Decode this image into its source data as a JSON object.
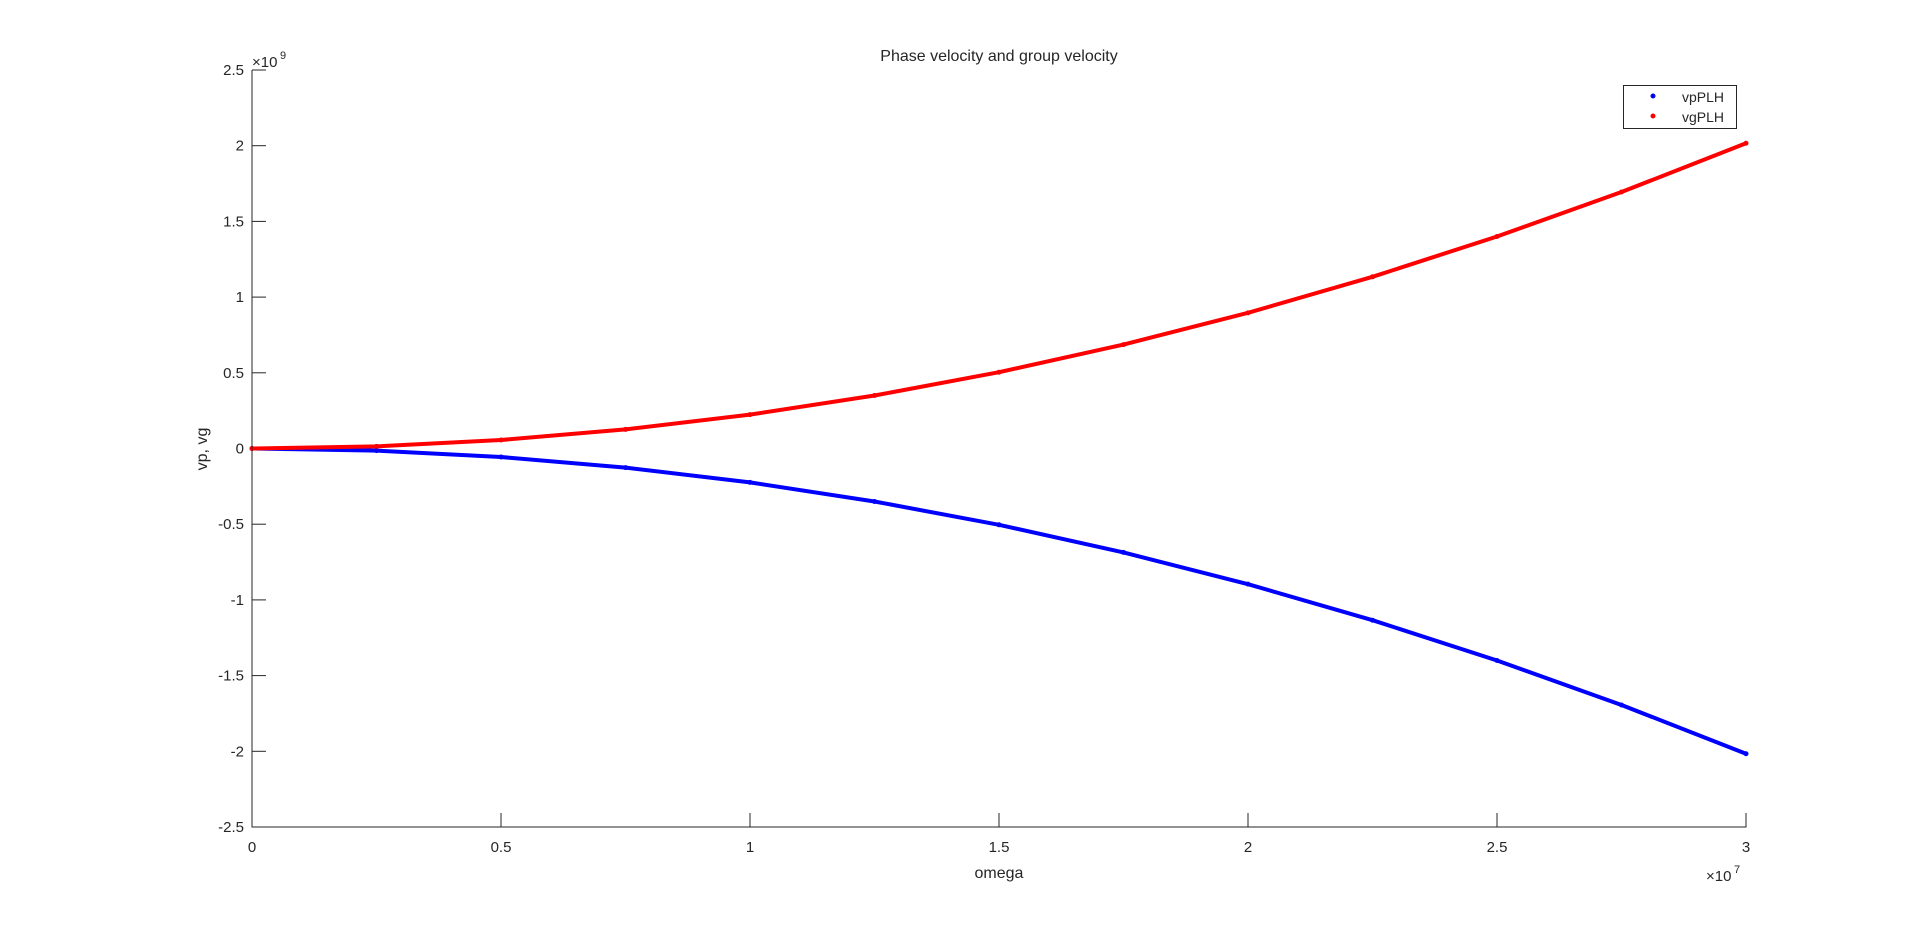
{
  "chart_data": {
    "type": "scatter",
    "title": "Phase velocity and group velocity",
    "xlabel": "omega",
    "ylabel": "vp, vg",
    "x_multiplier": "×10",
    "x_exponent": "7",
    "y_multiplier": "×10",
    "y_exponent": "9",
    "xlim": [
      0,
      30000000
    ],
    "ylim": [
      -2500000000,
      2500000000
    ],
    "x_ticks": [
      0,
      5000000,
      10000000,
      15000000,
      20000000,
      25000000,
      30000000
    ],
    "x_tick_labels": [
      "0",
      "0.5",
      "1",
      "1.5",
      "2",
      "2.5",
      "3"
    ],
    "y_ticks": [
      -2500000000,
      -2000000000,
      -1500000000,
      -1000000000,
      -500000000,
      0,
      500000000,
      1000000000,
      1500000000,
      2000000000,
      2500000000
    ],
    "y_tick_labels": [
      "-2.5",
      "-2",
      "-1.5",
      "-1",
      "-0.5",
      "0",
      "0.5",
      "1",
      "1.5",
      "2",
      "2.5"
    ],
    "grid": false,
    "legend_position": "top-right",
    "x": [
      0,
      2500000,
      5000000,
      7500000,
      10000000,
      12500000,
      15000000,
      17500000,
      20000000,
      22500000,
      25000000,
      27500000,
      30000000
    ],
    "series": [
      {
        "name": "vpPLH",
        "color": "#0000ff",
        "values": [
          0,
          -14000000,
          -56000000,
          -126000000,
          -224000000,
          -350000000,
          -504000000,
          -686000000,
          -896000000,
          -1134000000,
          -1400000000,
          -1694000000,
          -2016000000
        ]
      },
      {
        "name": "vgPLH",
        "color": "#ff0000",
        "values": [
          0,
          14000000,
          56000000,
          126000000,
          224000000,
          350000000,
          504000000,
          686000000,
          896000000,
          1134000000,
          1400000000,
          1694000000,
          2016000000
        ]
      }
    ]
  }
}
